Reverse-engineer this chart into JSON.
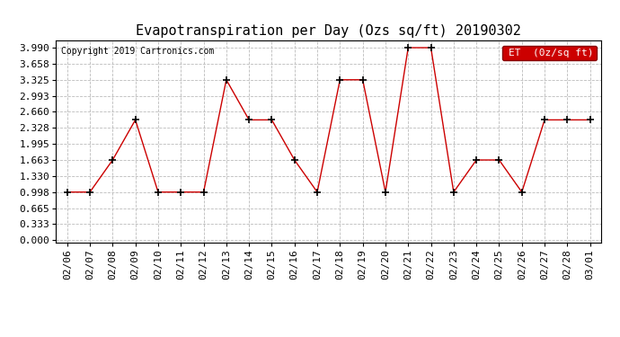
{
  "title": "Evapotranspiration per Day (Ozs sq/ft) 20190302",
  "copyright": "Copyright 2019 Cartronics.com",
  "legend_label": "ET  (0z/sq ft)",
  "dates": [
    "02/06",
    "02/07",
    "02/08",
    "02/09",
    "02/10",
    "02/11",
    "02/12",
    "02/13",
    "02/14",
    "02/15",
    "02/16",
    "02/17",
    "02/18",
    "02/19",
    "02/20",
    "02/21",
    "02/22",
    "02/23",
    "02/24",
    "02/25",
    "02/26",
    "02/27",
    "02/28",
    "03/01"
  ],
  "values": [
    0.998,
    0.998,
    1.663,
    2.494,
    0.998,
    0.998,
    0.998,
    3.325,
    2.494,
    2.494,
    1.663,
    0.998,
    3.325,
    3.325,
    0.998,
    3.99,
    3.99,
    0.998,
    1.663,
    1.663,
    0.998,
    2.494,
    2.494,
    2.494
  ],
  "ylim_min": 0.0,
  "ylim_max": 3.99,
  "yticks": [
    0.0,
    0.333,
    0.665,
    0.998,
    1.33,
    1.663,
    1.995,
    2.328,
    2.66,
    2.993,
    3.325,
    3.658,
    3.99
  ],
  "line_color": "#cc0000",
  "marker": "+",
  "marker_size": 6,
  "marker_color": "#000000",
  "background_color": "#ffffff",
  "grid_color": "#bbbbbb",
  "title_fontsize": 11,
  "copyright_fontsize": 7,
  "axis_fontsize": 8,
  "legend_bg": "#cc0000",
  "legend_text_color": "#ffffff",
  "legend_fontsize": 8
}
